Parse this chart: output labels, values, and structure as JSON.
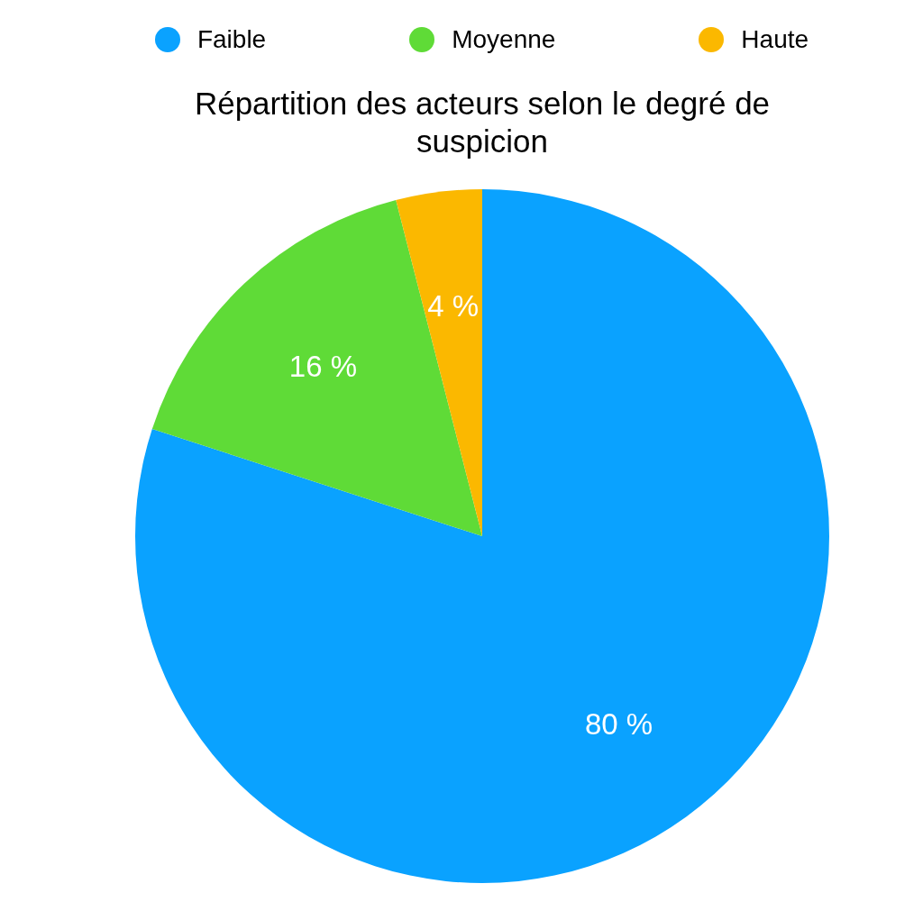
{
  "chart_data": {
    "type": "pie",
    "title": "Répartition des acteurs selon le degré de suspicion",
    "categories": [
      "Faible",
      "Moyenne",
      "Haute"
    ],
    "values": [
      80,
      16,
      4
    ],
    "colors": [
      "#0aa2ff",
      "#5fdb37",
      "#fbb800"
    ],
    "value_labels": [
      "80 %",
      "16 %",
      "4 %"
    ],
    "legend": "top"
  }
}
